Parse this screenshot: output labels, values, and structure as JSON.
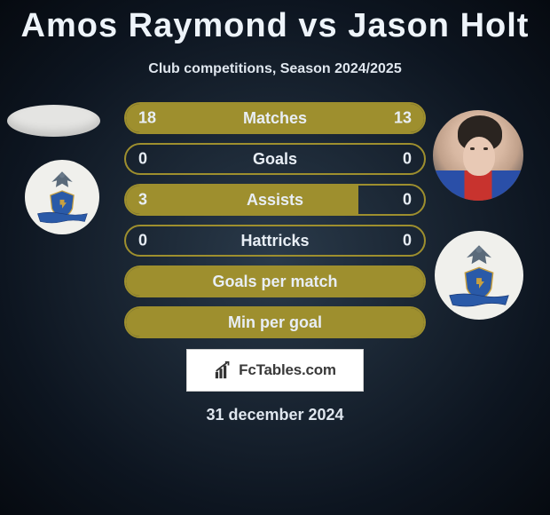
{
  "title": "Amos Raymond vs Jason Holt",
  "subtitle": "Club competitions, Season 2024/2025",
  "date": "31 december 2024",
  "footer_brand": "FcTables.com",
  "colors": {
    "bar_fill": "#9e8f2e",
    "bar_border": "#9e8f2e",
    "bg_inner": "#2a3a4a",
    "bg_outer": "#060a10",
    "text": "#e8eef5"
  },
  "stats": [
    {
      "label": "Matches",
      "left_val": "18",
      "right_val": "13",
      "left_pct": 50,
      "right_pct": 50
    },
    {
      "label": "Goals",
      "left_val": "0",
      "right_val": "0",
      "left_pct": 0,
      "right_pct": 0
    },
    {
      "label": "Assists",
      "left_val": "3",
      "right_val": "0",
      "left_pct": 78,
      "right_pct": 0
    },
    {
      "label": "Hattricks",
      "left_val": "0",
      "right_val": "0",
      "left_pct": 0,
      "right_pct": 0
    },
    {
      "label": "Goals per match",
      "left_val": "",
      "right_val": "",
      "left_pct": 100,
      "right_pct": 0
    },
    {
      "label": "Min per goal",
      "left_val": "",
      "right_val": "",
      "left_pct": 100,
      "right_pct": 0
    }
  ],
  "players": {
    "left": {
      "name": "Amos Raymond",
      "crest_label": "ST JOHNSTONE"
    },
    "right": {
      "name": "Jason Holt",
      "crest_label": "ST JOHNSTONE"
    }
  }
}
